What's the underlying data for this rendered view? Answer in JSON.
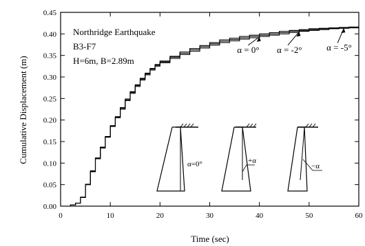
{
  "chart_data": {
    "type": "line",
    "title": "",
    "xlabel": "Time (sec)",
    "ylabel": "Cumulative Displacement (m)",
    "xlim": [
      0,
      60
    ],
    "ylim": [
      0,
      0.45
    ],
    "x_ticks": [
      "0",
      "10",
      "20",
      "30",
      "40",
      "50",
      "60"
    ],
    "y_ticks": [
      "0.00",
      "0.05",
      "0.10",
      "0.15",
      "0.20",
      "0.25",
      "0.30",
      "0.35",
      "0.40",
      "0.45"
    ],
    "grid": false,
    "annotation_lines": [
      "Northridge Earthquake",
      "B3-F7",
      "H=6m, B=2.89m"
    ],
    "series": [
      {
        "name": "α = 0°",
        "x": [
          0,
          2,
          3,
          4,
          5,
          6,
          7,
          8,
          9,
          10,
          11,
          12,
          13,
          14,
          15,
          16,
          17,
          18,
          19,
          20,
          22,
          24,
          26,
          28,
          30,
          32,
          34,
          36,
          38,
          40,
          42,
          44,
          46,
          48,
          50,
          52,
          54,
          56,
          58,
          60
        ],
        "y": [
          0,
          0.003,
          0.007,
          0.02,
          0.05,
          0.08,
          0.11,
          0.135,
          0.16,
          0.185,
          0.205,
          0.225,
          0.245,
          0.262,
          0.278,
          0.293,
          0.305,
          0.316,
          0.325,
          0.333,
          0.343,
          0.352,
          0.36,
          0.367,
          0.374,
          0.38,
          0.384,
          0.388,
          0.391,
          0.394,
          0.397,
          0.4,
          0.403,
          0.406,
          0.408,
          0.41,
          0.412,
          0.413,
          0.414,
          0.415
        ]
      },
      {
        "name": "α = -2°",
        "x": [
          0,
          2,
          3,
          4,
          5,
          6,
          7,
          8,
          9,
          10,
          11,
          12,
          13,
          14,
          15,
          16,
          17,
          18,
          19,
          20,
          22,
          24,
          26,
          28,
          30,
          32,
          34,
          36,
          38,
          40,
          42,
          44,
          46,
          48,
          50,
          52,
          54,
          56,
          58,
          60
        ],
        "y": [
          0,
          0.003,
          0.007,
          0.02,
          0.05,
          0.081,
          0.111,
          0.136,
          0.161,
          0.186,
          0.206,
          0.227,
          0.247,
          0.264,
          0.28,
          0.295,
          0.307,
          0.318,
          0.327,
          0.335,
          0.346,
          0.355,
          0.363,
          0.37,
          0.377,
          0.383,
          0.387,
          0.391,
          0.394,
          0.397,
          0.4,
          0.403,
          0.406,
          0.408,
          0.41,
          0.412,
          0.413,
          0.414,
          0.415,
          0.416
        ]
      },
      {
        "name": "α = -5°",
        "x": [
          0,
          2,
          3,
          4,
          5,
          6,
          7,
          8,
          9,
          10,
          11,
          12,
          13,
          14,
          15,
          16,
          17,
          18,
          19,
          20,
          22,
          24,
          26,
          28,
          30,
          32,
          34,
          36,
          38,
          40,
          42,
          44,
          46,
          48,
          50,
          52,
          54,
          56,
          58,
          60
        ],
        "y": [
          0,
          0.003,
          0.007,
          0.021,
          0.051,
          0.082,
          0.112,
          0.137,
          0.162,
          0.187,
          0.208,
          0.229,
          0.249,
          0.266,
          0.282,
          0.297,
          0.309,
          0.32,
          0.329,
          0.337,
          0.348,
          0.358,
          0.366,
          0.373,
          0.38,
          0.386,
          0.39,
          0.394,
          0.397,
          0.4,
          0.403,
          0.406,
          0.408,
          0.41,
          0.412,
          0.413,
          0.414,
          0.415,
          0.416,
          0.417
        ]
      }
    ],
    "series_labels": [
      {
        "text": "α = 0°",
        "x": 38,
        "y": 0.38
      },
      {
        "text": "α = -2°",
        "x": 46,
        "y": 0.38
      },
      {
        "text": "α = -5°",
        "x": 56,
        "y": 0.385
      }
    ],
    "inset_labels": [
      "α=0°",
      "+α",
      "−α"
    ]
  }
}
